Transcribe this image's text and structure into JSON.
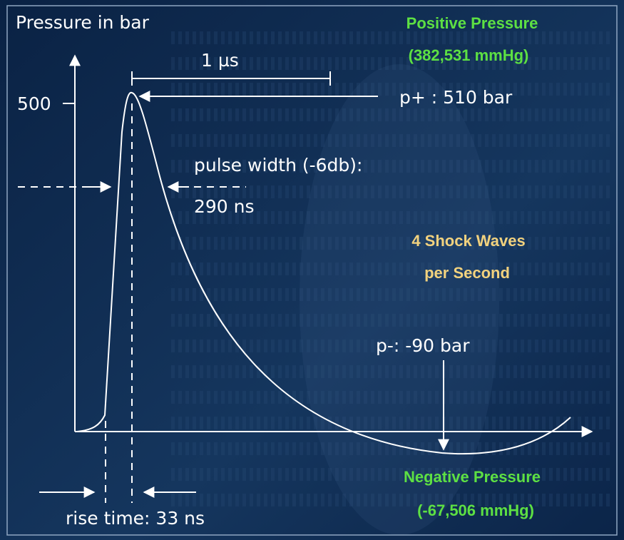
{
  "axis": {
    "y_label": "Pressure in bar",
    "y_tick": "500"
  },
  "annotations": {
    "duration": "1 µs",
    "peak": "p+ :  510 bar",
    "pulse_width": "pulse width (-6db):",
    "pulse_width_value": "290 ns",
    "trough": "p-:  -90 bar",
    "rise_time": "rise time: 33 ns"
  },
  "callouts": {
    "positive": [
      "Positive Pressure",
      "(382,531 mmHg)"
    ],
    "rate": [
      "4 Shock Waves",
      "per Second"
    ],
    "negative": [
      "Negative Pressure",
      "(-67,506 mmHg)"
    ]
  }
}
